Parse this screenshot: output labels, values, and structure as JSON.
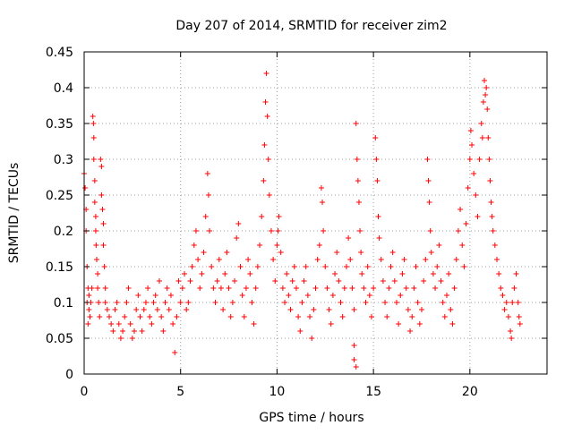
{
  "chart_data": {
    "type": "scatter",
    "title": "Day 207 of 2014, SRMTID for receiver zim2",
    "xlabel": "GPS time / hours",
    "ylabel": "SRMTID / TECUs",
    "xlim": [
      0,
      24
    ],
    "ylim": [
      0,
      0.45
    ],
    "xticks": [
      0,
      5,
      10,
      15,
      20
    ],
    "xtick_labels": [
      "0",
      "5",
      "10",
      "15",
      "20"
    ],
    "yticks": [
      0,
      0.05,
      0.1,
      0.15,
      0.2,
      0.25,
      0.3,
      0.35,
      0.4,
      0.45
    ],
    "ytick_labels": [
      "0",
      "0.05",
      "0.1",
      "0.15",
      "0.2",
      "0.25",
      "0.3",
      "0.35",
      "0.4",
      "0.45"
    ],
    "grid": true,
    "marker": "+",
    "marker_color": "#ff0000",
    "series": [
      {
        "name": "SRMTID",
        "points": [
          [
            0.0,
            0.28
          ],
          [
            0.05,
            0.26
          ],
          [
            0.1,
            0.23
          ],
          [
            0.1,
            0.2
          ],
          [
            0.15,
            0.15
          ],
          [
            0.2,
            0.12
          ],
          [
            0.25,
            0.09
          ],
          [
            0.3,
            0.08
          ],
          [
            0.2,
            0.07
          ],
          [
            0.15,
            0.1
          ],
          [
            0.25,
            0.11
          ],
          [
            0.35,
            0.1
          ],
          [
            0.4,
            0.12
          ],
          [
            0.45,
            0.36
          ],
          [
            0.48,
            0.35
          ],
          [
            0.5,
            0.33
          ],
          [
            0.5,
            0.3
          ],
          [
            0.55,
            0.27
          ],
          [
            0.55,
            0.24
          ],
          [
            0.6,
            0.22
          ],
          [
            0.6,
            0.2
          ],
          [
            0.62,
            0.18
          ],
          [
            0.65,
            0.16
          ],
          [
            0.7,
            0.14
          ],
          [
            0.7,
            0.12
          ],
          [
            0.75,
            0.1
          ],
          [
            0.8,
            0.08
          ],
          [
            0.85,
            0.3
          ],
          [
            0.9,
            0.29
          ],
          [
            0.9,
            0.25
          ],
          [
            0.95,
            0.23
          ],
          [
            1.0,
            0.21
          ],
          [
            1.0,
            0.18
          ],
          [
            1.05,
            0.15
          ],
          [
            1.1,
            0.12
          ],
          [
            1.1,
            0.1
          ],
          [
            1.2,
            0.09
          ],
          [
            1.3,
            0.08
          ],
          [
            1.4,
            0.07
          ],
          [
            1.5,
            0.06
          ],
          [
            1.6,
            0.09
          ],
          [
            1.7,
            0.1
          ],
          [
            1.8,
            0.07
          ],
          [
            1.9,
            0.05
          ],
          [
            2.0,
            0.06
          ],
          [
            2.1,
            0.08
          ],
          [
            2.2,
            0.1
          ],
          [
            2.3,
            0.12
          ],
          [
            2.4,
            0.07
          ],
          [
            2.5,
            0.05
          ],
          [
            2.6,
            0.06
          ],
          [
            2.7,
            0.09
          ],
          [
            2.8,
            0.11
          ],
          [
            2.9,
            0.08
          ],
          [
            3.0,
            0.06
          ],
          [
            3.1,
            0.09
          ],
          [
            3.2,
            0.1
          ],
          [
            3.3,
            0.12
          ],
          [
            3.4,
            0.08
          ],
          [
            3.5,
            0.07
          ],
          [
            3.6,
            0.1
          ],
          [
            3.7,
            0.11
          ],
          [
            3.8,
            0.09
          ],
          [
            3.9,
            0.13
          ],
          [
            4.0,
            0.08
          ],
          [
            4.1,
            0.06
          ],
          [
            4.2,
            0.1
          ],
          [
            4.3,
            0.12
          ],
          [
            4.4,
            0.09
          ],
          [
            4.5,
            0.11
          ],
          [
            4.6,
            0.07
          ],
          [
            4.7,
            0.03
          ],
          [
            4.8,
            0.08
          ],
          [
            4.9,
            0.13
          ],
          [
            5.0,
            0.1
          ],
          [
            5.1,
            0.12
          ],
          [
            5.2,
            0.14
          ],
          [
            5.3,
            0.09
          ],
          [
            5.4,
            0.1
          ],
          [
            5.5,
            0.13
          ],
          [
            5.6,
            0.15
          ],
          [
            5.7,
            0.18
          ],
          [
            5.8,
            0.2
          ],
          [
            5.9,
            0.16
          ],
          [
            6.0,
            0.12
          ],
          [
            6.1,
            0.14
          ],
          [
            6.2,
            0.17
          ],
          [
            6.3,
            0.22
          ],
          [
            6.4,
            0.28
          ],
          [
            6.45,
            0.25
          ],
          [
            6.5,
            0.2
          ],
          [
            6.6,
            0.15
          ],
          [
            6.7,
            0.12
          ],
          [
            6.8,
            0.1
          ],
          [
            6.9,
            0.13
          ],
          [
            7.0,
            0.16
          ],
          [
            7.1,
            0.12
          ],
          [
            7.2,
            0.09
          ],
          [
            7.3,
            0.14
          ],
          [
            7.4,
            0.17
          ],
          [
            7.5,
            0.12
          ],
          [
            7.6,
            0.08
          ],
          [
            7.7,
            0.1
          ],
          [
            7.8,
            0.13
          ],
          [
            7.9,
            0.19
          ],
          [
            8.0,
            0.21
          ],
          [
            8.1,
            0.15
          ],
          [
            8.2,
            0.11
          ],
          [
            8.3,
            0.08
          ],
          [
            8.4,
            0.12
          ],
          [
            8.5,
            0.16
          ],
          [
            8.6,
            0.14
          ],
          [
            8.7,
            0.1
          ],
          [
            8.8,
            0.07
          ],
          [
            8.9,
            0.12
          ],
          [
            9.0,
            0.15
          ],
          [
            9.1,
            0.18
          ],
          [
            9.2,
            0.22
          ],
          [
            9.3,
            0.27
          ],
          [
            9.35,
            0.32
          ],
          [
            9.4,
            0.38
          ],
          [
            9.45,
            0.42
          ],
          [
            9.5,
            0.36
          ],
          [
            9.55,
            0.3
          ],
          [
            9.6,
            0.25
          ],
          [
            9.7,
            0.2
          ],
          [
            9.8,
            0.16
          ],
          [
            9.9,
            0.13
          ],
          [
            10.0,
            0.18
          ],
          [
            10.05,
            0.2
          ],
          [
            10.1,
            0.22
          ],
          [
            10.2,
            0.17
          ],
          [
            10.3,
            0.12
          ],
          [
            10.4,
            0.1
          ],
          [
            10.5,
            0.14
          ],
          [
            10.6,
            0.11
          ],
          [
            10.7,
            0.09
          ],
          [
            10.8,
            0.13
          ],
          [
            10.9,
            0.15
          ],
          [
            11.0,
            0.12
          ],
          [
            11.1,
            0.08
          ],
          [
            11.2,
            0.06
          ],
          [
            11.3,
            0.1
          ],
          [
            11.4,
            0.13
          ],
          [
            11.5,
            0.15
          ],
          [
            11.6,
            0.11
          ],
          [
            11.7,
            0.08
          ],
          [
            11.8,
            0.05
          ],
          [
            11.9,
            0.09
          ],
          [
            12.0,
            0.12
          ],
          [
            12.1,
            0.16
          ],
          [
            12.2,
            0.18
          ],
          [
            12.3,
            0.26
          ],
          [
            12.35,
            0.24
          ],
          [
            12.4,
            0.2
          ],
          [
            12.5,
            0.15
          ],
          [
            12.6,
            0.12
          ],
          [
            12.7,
            0.09
          ],
          [
            12.8,
            0.07
          ],
          [
            12.9,
            0.11
          ],
          [
            13.0,
            0.14
          ],
          [
            13.1,
            0.17
          ],
          [
            13.2,
            0.13
          ],
          [
            13.3,
            0.1
          ],
          [
            13.4,
            0.08
          ],
          [
            13.5,
            0.12
          ],
          [
            13.6,
            0.15
          ],
          [
            13.7,
            0.19
          ],
          [
            13.8,
            0.16
          ],
          [
            13.9,
            0.12
          ],
          [
            14.0,
            0.09
          ],
          [
            14.1,
            0.35
          ],
          [
            14.15,
            0.3
          ],
          [
            14.2,
            0.27
          ],
          [
            14.25,
            0.24
          ],
          [
            14.3,
            0.2
          ],
          [
            14.35,
            0.17
          ],
          [
            14.4,
            0.14
          ],
          [
            14.5,
            0.12
          ],
          [
            14.6,
            0.1
          ],
          [
            14.7,
            0.15
          ],
          [
            14.8,
            0.11
          ],
          [
            14.9,
            0.08
          ],
          [
            14.0,
            0.02
          ],
          [
            14.1,
            0.01
          ],
          [
            14.0,
            0.04
          ],
          [
            15.0,
            0.12
          ],
          [
            15.1,
            0.33
          ],
          [
            15.15,
            0.3
          ],
          [
            15.2,
            0.27
          ],
          [
            15.25,
            0.22
          ],
          [
            15.3,
            0.19
          ],
          [
            15.4,
            0.16
          ],
          [
            15.5,
            0.13
          ],
          [
            15.6,
            0.1
          ],
          [
            15.7,
            0.08
          ],
          [
            15.8,
            0.12
          ],
          [
            15.9,
            0.15
          ],
          [
            16.0,
            0.17
          ],
          [
            16.1,
            0.13
          ],
          [
            16.2,
            0.1
          ],
          [
            16.3,
            0.07
          ],
          [
            16.4,
            0.11
          ],
          [
            16.5,
            0.14
          ],
          [
            16.6,
            0.16
          ],
          [
            16.7,
            0.12
          ],
          [
            16.8,
            0.09
          ],
          [
            16.9,
            0.06
          ],
          [
            17.0,
            0.08
          ],
          [
            17.1,
            0.12
          ],
          [
            17.2,
            0.15
          ],
          [
            17.3,
            0.1
          ],
          [
            17.4,
            0.07
          ],
          [
            17.5,
            0.09
          ],
          [
            17.6,
            0.13
          ],
          [
            17.7,
            0.16
          ],
          [
            17.8,
            0.3
          ],
          [
            17.85,
            0.27
          ],
          [
            17.9,
            0.24
          ],
          [
            17.95,
            0.2
          ],
          [
            18.0,
            0.17
          ],
          [
            18.1,
            0.14
          ],
          [
            18.2,
            0.12
          ],
          [
            18.3,
            0.15
          ],
          [
            18.4,
            0.18
          ],
          [
            18.5,
            0.13
          ],
          [
            18.6,
            0.1
          ],
          [
            18.7,
            0.08
          ],
          [
            18.8,
            0.11
          ],
          [
            18.9,
            0.14
          ],
          [
            19.0,
            0.09
          ],
          [
            19.1,
            0.07
          ],
          [
            19.2,
            0.12
          ],
          [
            19.3,
            0.16
          ],
          [
            19.4,
            0.2
          ],
          [
            19.5,
            0.23
          ],
          [
            19.6,
            0.18
          ],
          [
            19.7,
            0.15
          ],
          [
            19.8,
            0.21
          ],
          [
            19.9,
            0.26
          ],
          [
            20.0,
            0.3
          ],
          [
            20.05,
            0.34
          ],
          [
            20.1,
            0.32
          ],
          [
            20.2,
            0.28
          ],
          [
            20.3,
            0.25
          ],
          [
            20.4,
            0.22
          ],
          [
            20.5,
            0.3
          ],
          [
            20.6,
            0.35
          ],
          [
            20.65,
            0.33
          ],
          [
            20.7,
            0.38
          ],
          [
            20.75,
            0.41
          ],
          [
            20.8,
            0.39
          ],
          [
            20.85,
            0.4
          ],
          [
            20.9,
            0.37
          ],
          [
            20.95,
            0.33
          ],
          [
            21.0,
            0.3
          ],
          [
            21.05,
            0.27
          ],
          [
            21.1,
            0.24
          ],
          [
            21.15,
            0.22
          ],
          [
            21.2,
            0.2
          ],
          [
            21.3,
            0.18
          ],
          [
            21.4,
            0.16
          ],
          [
            21.5,
            0.14
          ],
          [
            21.6,
            0.12
          ],
          [
            21.7,
            0.11
          ],
          [
            21.8,
            0.09
          ],
          [
            21.9,
            0.1
          ],
          [
            22.0,
            0.08
          ],
          [
            22.1,
            0.06
          ],
          [
            22.15,
            0.05
          ],
          [
            22.2,
            0.1
          ],
          [
            22.3,
            0.12
          ],
          [
            22.4,
            0.14
          ],
          [
            22.5,
            0.1
          ],
          [
            22.55,
            0.08
          ],
          [
            22.6,
            0.07
          ]
        ]
      }
    ]
  }
}
